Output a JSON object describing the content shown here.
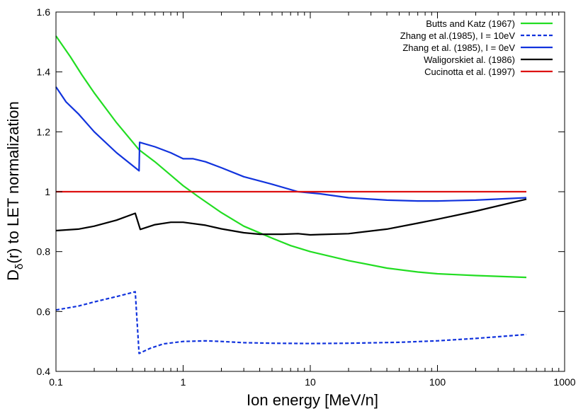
{
  "chart_data": {
    "type": "line",
    "title": "",
    "xlabel": "Ion energy [MeV/n]",
    "ylabel_main": "D",
    "ylabel_sub": "δ",
    "ylabel_rest": "(r) to LET normalization",
    "xscale": "log",
    "xlim": [
      0.1,
      1000
    ],
    "ylim": [
      0.4,
      1.6
    ],
    "grid": false,
    "legend_position": "top-right",
    "x_ticks": [
      {
        "value": 0.1,
        "label": "0.1"
      },
      {
        "value": 1,
        "label": "1"
      },
      {
        "value": 10,
        "label": "10"
      },
      {
        "value": 100,
        "label": "100"
      },
      {
        "value": 1000,
        "label": "1000"
      }
    ],
    "y_ticks": [
      {
        "value": 0.4,
        "label": "0.4"
      },
      {
        "value": 0.6,
        "label": "0.6"
      },
      {
        "value": 0.8,
        "label": "0.8"
      },
      {
        "value": 1.0,
        "label": "1"
      },
      {
        "value": 1.2,
        "label": "1.2"
      },
      {
        "value": 1.4,
        "label": "1.4"
      },
      {
        "value": 1.6,
        "label": "1.6"
      }
    ],
    "series": [
      {
        "name": "Butts and Katz (1967)",
        "color": "#22dd22",
        "dash": "solid",
        "points": [
          [
            0.1,
            1.52
          ],
          [
            0.13,
            1.45
          ],
          [
            0.16,
            1.39
          ],
          [
            0.2,
            1.33
          ],
          [
            0.3,
            1.23
          ],
          [
            0.45,
            1.14
          ],
          [
            0.6,
            1.1
          ],
          [
            0.8,
            1.055
          ],
          [
            1,
            1.02
          ],
          [
            1.3,
            0.985
          ],
          [
            2,
            0.93
          ],
          [
            3,
            0.885
          ],
          [
            5,
            0.845
          ],
          [
            7,
            0.82
          ],
          [
            10,
            0.8
          ],
          [
            20,
            0.77
          ],
          [
            40,
            0.745
          ],
          [
            70,
            0.732
          ],
          [
            100,
            0.726
          ],
          [
            200,
            0.72
          ],
          [
            500,
            0.714
          ]
        ]
      },
      {
        "name": "Zhang et al.(1985), I = 10eV",
        "color": "#1133dd",
        "dash": "dashed",
        "points": [
          [
            0.1,
            0.605
          ],
          [
            0.15,
            0.618
          ],
          [
            0.2,
            0.632
          ],
          [
            0.3,
            0.65
          ],
          [
            0.42,
            0.666
          ],
          [
            0.45,
            0.46
          ],
          [
            0.55,
            0.477
          ],
          [
            0.7,
            0.492
          ],
          [
            1,
            0.5
          ],
          [
            1.5,
            0.502
          ],
          [
            2,
            0.5
          ],
          [
            3,
            0.496
          ],
          [
            5,
            0.494
          ],
          [
            10,
            0.493
          ],
          [
            20,
            0.494
          ],
          [
            50,
            0.497
          ],
          [
            100,
            0.502
          ],
          [
            200,
            0.51
          ],
          [
            500,
            0.523
          ]
        ]
      },
      {
        "name": "Zhang et al. (1985), I = 0eV",
        "color": "#1133dd",
        "dash": "solid",
        "points": [
          [
            0.1,
            1.35
          ],
          [
            0.12,
            1.3
          ],
          [
            0.15,
            1.26
          ],
          [
            0.2,
            1.2
          ],
          [
            0.3,
            1.13
          ],
          [
            0.45,
            1.07
          ],
          [
            0.455,
            1.165
          ],
          [
            0.6,
            1.15
          ],
          [
            0.8,
            1.13
          ],
          [
            1,
            1.11
          ],
          [
            1.2,
            1.11
          ],
          [
            1.5,
            1.1
          ],
          [
            2,
            1.08
          ],
          [
            3,
            1.05
          ],
          [
            5,
            1.025
          ],
          [
            8,
            1.0
          ],
          [
            12,
            0.993
          ],
          [
            20,
            0.98
          ],
          [
            40,
            0.972
          ],
          [
            70,
            0.969
          ],
          [
            100,
            0.969
          ],
          [
            200,
            0.972
          ],
          [
            500,
            0.98
          ]
        ]
      },
      {
        "name": "Waligorskiet al. (1986)",
        "color": "#000000",
        "dash": "solid",
        "points": [
          [
            0.1,
            0.87
          ],
          [
            0.15,
            0.875
          ],
          [
            0.2,
            0.885
          ],
          [
            0.3,
            0.905
          ],
          [
            0.42,
            0.928
          ],
          [
            0.46,
            0.874
          ],
          [
            0.6,
            0.89
          ],
          [
            0.8,
            0.898
          ],
          [
            1,
            0.898
          ],
          [
            1.5,
            0.888
          ],
          [
            2,
            0.876
          ],
          [
            3,
            0.863
          ],
          [
            4,
            0.858
          ],
          [
            6,
            0.858
          ],
          [
            8,
            0.86
          ],
          [
            10,
            0.856
          ],
          [
            12,
            0.857
          ],
          [
            20,
            0.86
          ],
          [
            40,
            0.875
          ],
          [
            70,
            0.895
          ],
          [
            100,
            0.908
          ],
          [
            200,
            0.935
          ],
          [
            500,
            0.975
          ]
        ]
      },
      {
        "name": "Cucinotta et al. (1997)",
        "color": "#dd1111",
        "dash": "solid",
        "points": [
          [
            0.1,
            1.0
          ],
          [
            500,
            1.0
          ]
        ]
      }
    ]
  }
}
